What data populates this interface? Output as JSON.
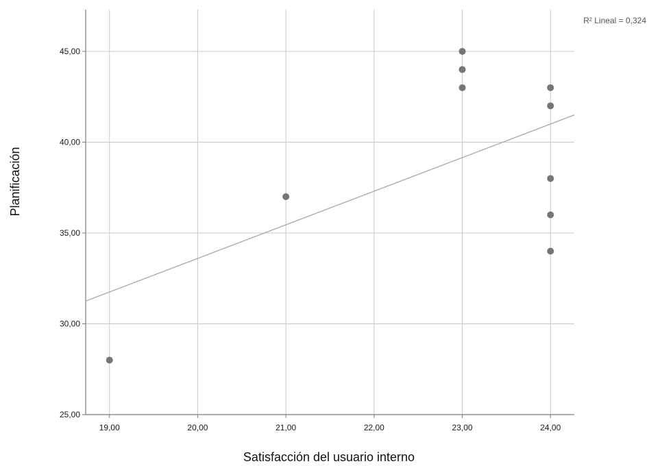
{
  "chart_data": {
    "type": "scatter",
    "title": "",
    "xlabel": "Satisfacción del usuario interno",
    "ylabel": "Planificación",
    "xlim": [
      18.73,
      24.27
    ],
    "ylim": [
      25.0,
      47.3
    ],
    "x_ticks": [
      19,
      20,
      21,
      22,
      23,
      24
    ],
    "x_tick_labels": [
      "19,00",
      "20,00",
      "21,00",
      "22,00",
      "23,00",
      "24,00"
    ],
    "y_ticks": [
      25,
      30,
      35,
      40,
      45
    ],
    "y_tick_labels": [
      "25,00",
      "30,00",
      "35,00",
      "40,00",
      "45,00"
    ],
    "grid": true,
    "points": [
      {
        "x": 19,
        "y": 28
      },
      {
        "x": 21,
        "y": 37
      },
      {
        "x": 23,
        "y": 45
      },
      {
        "x": 23,
        "y": 44
      },
      {
        "x": 23,
        "y": 43
      },
      {
        "x": 24,
        "y": 43
      },
      {
        "x": 24,
        "y": 42
      },
      {
        "x": 24,
        "y": 38
      },
      {
        "x": 24,
        "y": 36
      },
      {
        "x": 24,
        "y": 34
      }
    ],
    "fit_line": {
      "type": "linear",
      "x_range": [
        18.73,
        24.27
      ],
      "y_values": [
        31.25,
        41.5
      ]
    },
    "annotation": "R² Lineal = 0,324",
    "colors": {
      "point": "#767676",
      "fit_line": "#a6a6a6",
      "grid": "#c8c8c8",
      "axis": "#7a7a7a"
    }
  }
}
